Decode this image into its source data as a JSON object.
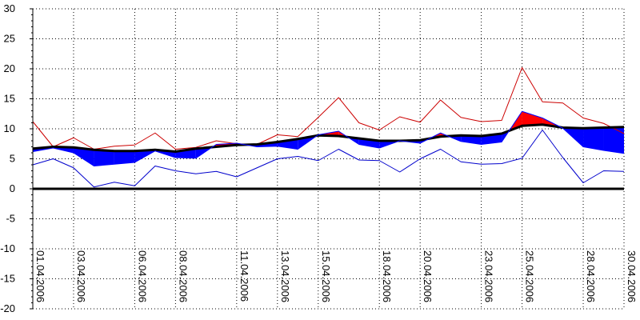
{
  "chart_data": {
    "type": "line",
    "title": "",
    "xlabel": "",
    "ylabel": "",
    "ylim": [
      -20,
      30
    ],
    "grid": true,
    "y_ticks": [
      "30",
      "25",
      "20",
      "15",
      "10",
      "5",
      "0",
      "-5",
      "-10",
      "-15",
      "-20"
    ],
    "x_tick_labels": [
      "01.04.2006",
      "03.04.2006",
      "06.04.2006",
      "08.04.2006",
      "11.04.2006",
      "13.04.2006",
      "15.04.2006",
      "18.04.2006",
      "20.04.2006",
      "23.04.2006",
      "25.04.2006",
      "28.04.2006",
      "30.04.2006"
    ],
    "x_tick_days": [
      1,
      3,
      6,
      8,
      11,
      13,
      15,
      18,
      20,
      23,
      25,
      28,
      30
    ],
    "days": [
      1,
      2,
      3,
      4,
      5,
      6,
      7,
      8,
      9,
      10,
      11,
      12,
      13,
      14,
      15,
      16,
      17,
      18,
      19,
      20,
      21,
      22,
      23,
      24,
      25,
      26,
      27,
      28,
      29,
      30
    ],
    "series": [
      {
        "color": "#cc0000",
        "values": [
          11.2,
          7.0,
          8.5,
          6.6,
          7.1,
          7.3,
          9.3,
          6.6,
          6.9,
          8.0,
          7.5,
          7.4,
          9.0,
          8.7,
          11.9,
          15.2,
          11.0,
          9.8,
          12.0,
          11.1,
          14.8,
          11.9,
          11.2,
          11.4,
          20.2,
          14.5,
          14.3,
          11.8,
          10.9,
          9.2
        ]
      },
      {
        "color": "#000000",
        "values": [
          6.7,
          7.0,
          6.9,
          6.5,
          6.3,
          6.3,
          6.5,
          6.2,
          6.7,
          7.0,
          7.3,
          7.4,
          7.8,
          8.3,
          8.9,
          8.8,
          8.4,
          8.0,
          8.0,
          8.1,
          8.7,
          8.9,
          8.8,
          9.2,
          10.5,
          10.7,
          10.2,
          10.1,
          10.2,
          10.3
        ]
      },
      {
        "color": "#0000ff",
        "values": [
          6.2,
          6.8,
          6.0,
          3.8,
          4.1,
          4.4,
          6.3,
          5.2,
          5.1,
          7.4,
          7.6,
          7.0,
          7.1,
          6.6,
          9.0,
          9.6,
          7.4,
          6.8,
          8.0,
          7.6,
          9.3,
          7.9,
          7.4,
          7.8,
          12.9,
          11.8,
          10.1,
          7.0,
          6.4,
          5.9
        ]
      },
      {
        "color": "#0000cc",
        "values": [
          4.0,
          5.0,
          3.5,
          0.3,
          1.1,
          0.5,
          3.8,
          3.0,
          2.5,
          2.9,
          2.0,
          3.5,
          5.0,
          5.4,
          4.7,
          6.6,
          4.8,
          4.7,
          2.8,
          5.0,
          6.6,
          4.5,
          4.1,
          4.2,
          5.1,
          9.8,
          5.2,
          1.0,
          3.0,
          2.9
        ]
      }
    ],
    "band_above_color": "#ff0000",
    "band_below_color": "#0000ff",
    "zero_line_color": "#000000"
  }
}
